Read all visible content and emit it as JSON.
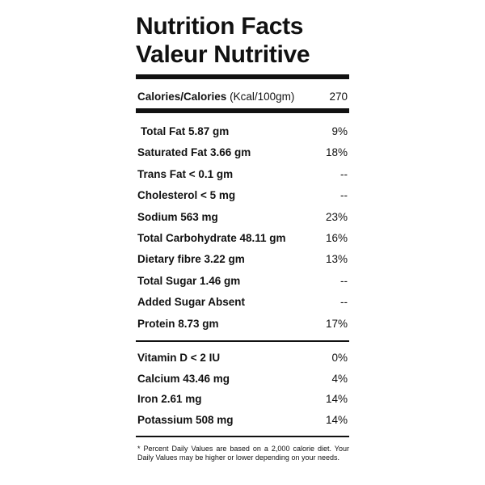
{
  "header": {
    "title_en": "Nutrition Facts",
    "title_fr": "Valeur Nutritive"
  },
  "calories": {
    "label": "Calories/Calories",
    "unit": "(Kcal/100gm)",
    "value": 270
  },
  "nutrients": [
    {
      "name": "Total Fat 5.87 gm",
      "dv": "9%"
    },
    {
      "name": "Saturated Fat 3.66 gm",
      "dv": "18%"
    },
    {
      "name": "Trans Fat < 0.1 gm",
      "dv": "--"
    },
    {
      "name": "Cholesterol < 5 mg",
      "dv": "--"
    },
    {
      "name": "Sodium 563 mg",
      "dv": "23%"
    },
    {
      "name": "Total Carbohydrate 48.11 gm",
      "dv": "16%"
    },
    {
      "name": "Dietary fibre 3.22 gm",
      "dv": "13%"
    },
    {
      "name": "Total Sugar 1.46 gm",
      "dv": "--"
    },
    {
      "name": "Added Sugar Absent",
      "dv": "--"
    },
    {
      "name": "Protein 8.73 gm",
      "dv": "17%"
    }
  ],
  "vitamins": [
    {
      "name": "Vitamin D < 2 IU",
      "dv": "0%"
    },
    {
      "name": "Calcium 43.46 mg",
      "dv": "4%"
    },
    {
      "name": "Iron 2.61 mg",
      "dv": "14%"
    },
    {
      "name": "Potassium 508 mg",
      "dv": "14%"
    }
  ],
  "footnote": "* Percent Daily Values are based on a 2,000 calorie diet. Your Daily Values may be higher or lower depending on your needs."
}
